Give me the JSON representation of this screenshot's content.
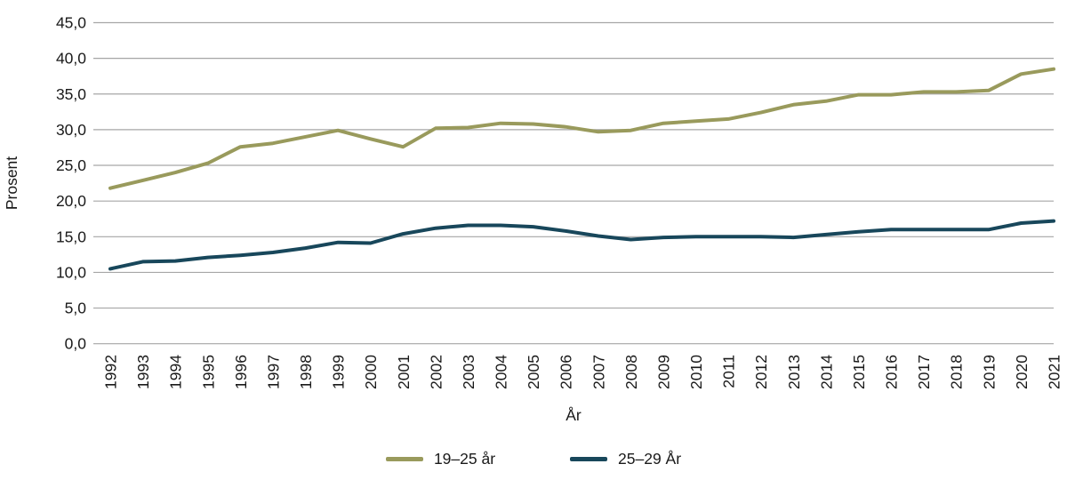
{
  "figure": {
    "background": "#ffffff",
    "gridline_color": "#a6a6a6",
    "text_color": "#1a1a1a"
  },
  "y_axis": {
    "title": "Prosent",
    "ticks": [
      "45,0",
      "40,0",
      "35,0",
      "30,0",
      "25,0",
      "20,0",
      "15,0",
      "10,0",
      "5,0",
      "0,0"
    ]
  },
  "x_axis": {
    "title": "År",
    "ticks": [
      "1992",
      "1993",
      "1994",
      "1995",
      "1996",
      "1997",
      "1998",
      "1999",
      "2000",
      "2001",
      "2002",
      "2003",
      "2004",
      "2005",
      "2006",
      "2007",
      "2008",
      "2009",
      "2010",
      "2011",
      "2012",
      "2013",
      "2014",
      "2015",
      "2016",
      "2017",
      "2018",
      "2019",
      "2020",
      "2021"
    ]
  },
  "legend": {
    "items": [
      {
        "label": "19–25 år",
        "color": "#999a5c"
      },
      {
        "label": "25–29 År",
        "color": "#18475b"
      }
    ]
  },
  "chart_data": {
    "type": "line",
    "title": "",
    "xlabel": "År",
    "ylabel": "Prosent",
    "ylim": [
      0,
      45
    ],
    "grid": "horizontal-only",
    "legend_position": "bottom-center",
    "x": [
      1992,
      1993,
      1994,
      1995,
      1996,
      1997,
      1998,
      1999,
      2000,
      2001,
      2002,
      2003,
      2004,
      2005,
      2006,
      2007,
      2008,
      2009,
      2010,
      2011,
      2012,
      2013,
      2014,
      2015,
      2016,
      2017,
      2018,
      2019,
      2020,
      2021
    ],
    "series": [
      {
        "name": "19–25 år",
        "color": "#999a5c",
        "values": [
          21.8,
          22.9,
          24.0,
          25.3,
          27.6,
          28.1,
          29.0,
          29.9,
          28.7,
          27.6,
          30.2,
          30.3,
          30.9,
          30.8,
          30.4,
          29.7,
          29.9,
          30.9,
          31.2,
          31.5,
          32.4,
          33.5,
          34.0,
          34.9,
          34.9,
          35.3,
          35.3,
          35.5,
          37.8,
          38.5
        ]
      },
      {
        "name": "25–29 År",
        "color": "#18475b",
        "values": [
          10.5,
          11.5,
          11.6,
          12.1,
          12.4,
          12.8,
          13.4,
          14.2,
          14.1,
          15.4,
          16.2,
          16.6,
          16.6,
          16.4,
          15.8,
          15.1,
          14.6,
          14.9,
          15.0,
          15.0,
          15.0,
          14.9,
          15.3,
          15.7,
          16.0,
          16.0,
          16.0,
          16.0,
          16.9,
          17.2
        ]
      }
    ]
  }
}
